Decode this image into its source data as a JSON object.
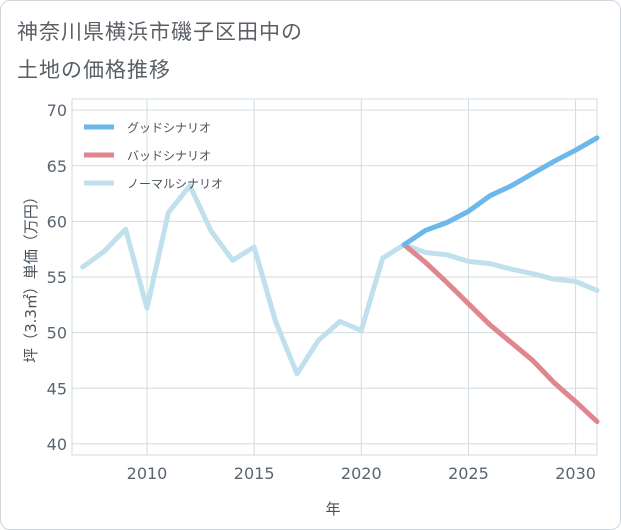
{
  "title": {
    "line1": "神奈川県横浜市磯子区田中の",
    "line2": "土地の価格推移"
  },
  "chart_data": {
    "type": "line",
    "xlabel": "年",
    "ylabel": "坪（3.3㎡）単価（万円）",
    "xlim": [
      2006.5,
      2031
    ],
    "ylim": [
      39,
      71
    ],
    "xticks": [
      2010,
      2015,
      2020,
      2025,
      2030
    ],
    "yticks": [
      40,
      45,
      50,
      55,
      60,
      65,
      70
    ],
    "grid": true,
    "legend_position": "top-left",
    "series": [
      {
        "name": "グッドシナリオ",
        "color": "#6cb8ea",
        "x": [
          2022,
          2023,
          2024,
          2025,
          2026,
          2027,
          2028,
          2029,
          2030,
          2031
        ],
        "values": [
          57.9,
          59.2,
          59.9,
          60.9,
          62.3,
          63.2,
          64.3,
          65.4,
          66.4,
          67.5
        ]
      },
      {
        "name": "バッドシナリオ",
        "color": "#e0868f",
        "x": [
          2022,
          2023,
          2024,
          2025,
          2026,
          2027,
          2028,
          2029,
          2030,
          2031
        ],
        "values": [
          57.9,
          56.3,
          54.5,
          52.6,
          50.7,
          49.1,
          47.5,
          45.5,
          43.8,
          42.0
        ]
      },
      {
        "name": "ノーマルシナリオ",
        "color": "#bfe0ec",
        "x": [
          2007,
          2008,
          2009,
          2010,
          2011,
          2012,
          2013,
          2014,
          2015,
          2016,
          2017,
          2018,
          2019,
          2020,
          2021,
          2022,
          2023,
          2024,
          2025,
          2026,
          2027,
          2028,
          2029,
          2030,
          2031
        ],
        "values": [
          55.9,
          57.3,
          59.3,
          52.2,
          60.8,
          63.2,
          59.1,
          56.5,
          57.7,
          51.0,
          46.3,
          49.3,
          51.0,
          50.2,
          56.7,
          57.9,
          57.2,
          57.0,
          56.4,
          56.2,
          55.7,
          55.3,
          54.8,
          54.6,
          53.8
        ]
      }
    ]
  }
}
